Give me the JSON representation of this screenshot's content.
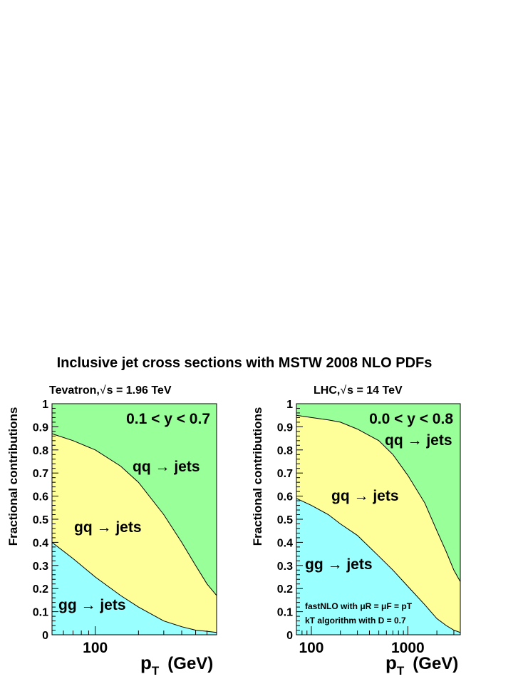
{
  "title": "Inclusive jet cross sections with MSTW 2008 NLO PDFs",
  "chart_data": [
    {
      "type": "area",
      "stacked": true,
      "subtitle_prefix": "Tevatron,",
      "subtitle_sqrt": "√",
      "subtitle_rest": "s = 1.96 TeV",
      "xlabel": "p",
      "xlabel_sub": "T",
      "xlabel_unit": "(GeV)",
      "ylabel": "Fractional contributions",
      "xscale": "log",
      "xlim": [
        50,
        700
      ],
      "ylim": [
        0,
        1
      ],
      "x_ticks": [
        {
          "value": 100,
          "label": "100"
        }
      ],
      "y_ticks": [
        0,
        0.1,
        0.2,
        0.3,
        0.4,
        0.5,
        0.6,
        0.7,
        0.8,
        0.9,
        1
      ],
      "y_tick_labels": [
        "0",
        "0.1",
        "0.2",
        "0.3",
        "0.4",
        "0.5",
        "0.6",
        "0.7",
        "0.8",
        "0.9",
        "1"
      ],
      "range_label": "0.1 < y < 0.7",
      "x": [
        50,
        70,
        100,
        150,
        200,
        300,
        400,
        500,
        600,
        700
      ],
      "series": [
        {
          "name": "gg → jets",
          "color": "#99ffff",
          "upper": [
            0.4,
            0.33,
            0.25,
            0.17,
            0.12,
            0.06,
            0.035,
            0.02,
            0.015,
            0.01
          ]
        },
        {
          "name": "gq → jets",
          "color": "#ffff99",
          "upper": [
            0.87,
            0.84,
            0.8,
            0.73,
            0.66,
            0.52,
            0.4,
            0.3,
            0.22,
            0.17
          ]
        },
        {
          "name": "qq → jets",
          "color": "#99ff99",
          "upper": [
            1,
            1,
            1,
            1,
            1,
            1,
            1,
            1,
            1,
            1
          ]
        }
      ]
    },
    {
      "type": "area",
      "stacked": true,
      "subtitle_prefix": "LHC,",
      "subtitle_sqrt": "√",
      "subtitle_rest": "s = 14 TeV",
      "xlabel": "p",
      "xlabel_sub": "T",
      "xlabel_unit": "(GeV)",
      "ylabel": "Fractional contributions",
      "xscale": "log",
      "xlim": [
        70,
        3500
      ],
      "ylim": [
        0,
        1
      ],
      "x_ticks": [
        {
          "value": 100,
          "label": "100"
        },
        {
          "value": 1000,
          "label": "1000"
        }
      ],
      "y_ticks": [
        0,
        0.1,
        0.2,
        0.3,
        0.4,
        0.5,
        0.6,
        0.7,
        0.8,
        0.9,
        1
      ],
      "y_tick_labels": [
        "0",
        "0.1",
        "0.2",
        "0.3",
        "0.4",
        "0.5",
        "0.6",
        "0.7",
        "0.8",
        "0.9",
        "1"
      ],
      "range_label": "0.0 < y < 0.8",
      "annotation_line1": "fastNLO with μR = μF = pT",
      "annotation_line2": "kT algorithm with D = 0.7",
      "x": [
        70,
        100,
        150,
        200,
        300,
        500,
        700,
        1000,
        1500,
        2000,
        2500,
        3000,
        3500
      ],
      "series": [
        {
          "name": "gg → jets",
          "color": "#99ffff",
          "upper": [
            0.59,
            0.56,
            0.52,
            0.48,
            0.43,
            0.34,
            0.28,
            0.21,
            0.13,
            0.07,
            0.04,
            0.02,
            0.01
          ]
        },
        {
          "name": "gq → jets",
          "color": "#ffff99",
          "upper": [
            0.95,
            0.94,
            0.93,
            0.92,
            0.89,
            0.84,
            0.78,
            0.69,
            0.57,
            0.45,
            0.36,
            0.28,
            0.23
          ]
        },
        {
          "name": "qq → jets",
          "color": "#99ff99",
          "upper": [
            1,
            1,
            1,
            1,
            1,
            1,
            1,
            1,
            1,
            1,
            1,
            1,
            1
          ]
        }
      ]
    }
  ]
}
